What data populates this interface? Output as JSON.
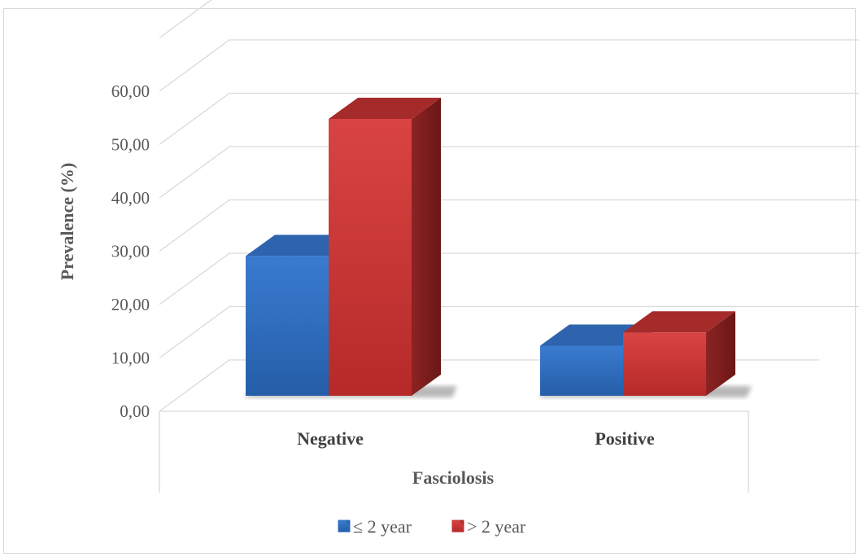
{
  "chart_data": {
    "type": "bar",
    "categories": [
      "Negative",
      "Positive"
    ],
    "series": [
      {
        "name": "≤ 2 year",
        "values": [
          26.5,
          9.5
        ],
        "color": "#2e6ab7"
      },
      {
        "name": "> 2 year",
        "values": [
          52.5,
          12.0
        ],
        "color": "#c33130"
      }
    ],
    "title": "",
    "xlabel": "Fasciolosis",
    "ylabel": "Prevalence (%)",
    "ylim": [
      0,
      70
    ],
    "yticks": [
      "0,00",
      "10,00",
      "20,00",
      "30,00",
      "40,00",
      "50,00",
      "60,00"
    ],
    "grid": true,
    "legend": "bottom",
    "style": "3d-clustered-column"
  }
}
